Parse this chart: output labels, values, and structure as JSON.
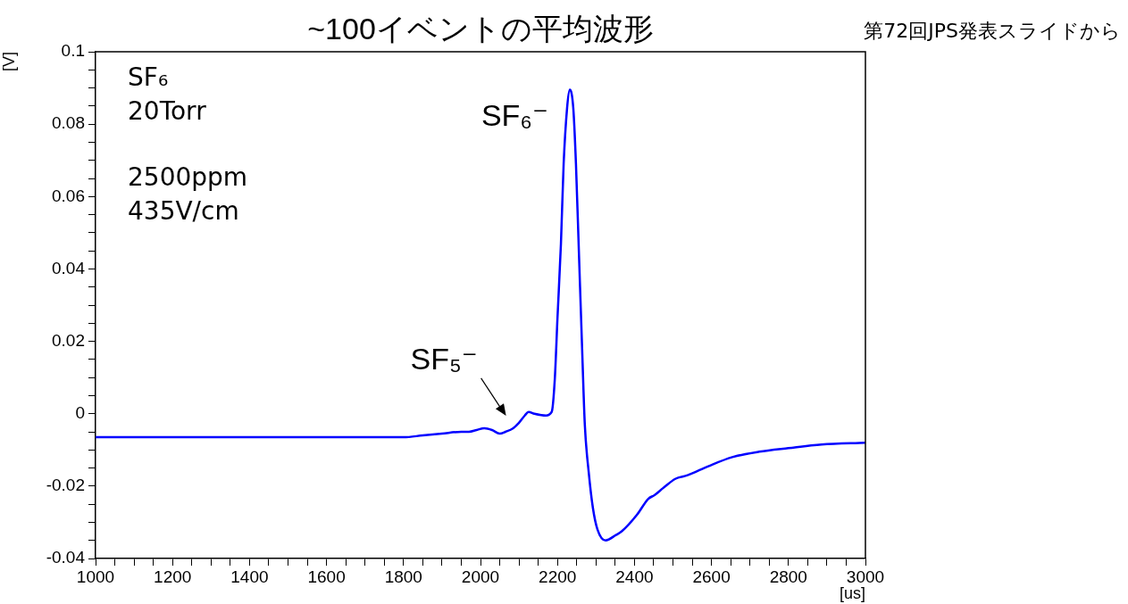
{
  "chart_data": {
    "type": "line",
    "title": "~100イベントの平均波形",
    "xlabel": "[us]",
    "ylabel": "[V]",
    "x": [
      1000,
      1200,
      1400,
      1600,
      1800,
      1850,
      1900,
      1950,
      1970,
      1990,
      2010,
      2030,
      2050,
      2065,
      2085,
      2100,
      2115,
      2125,
      2140,
      2170,
      2185,
      2193,
      2200,
      2209,
      2216,
      2225,
      2232,
      2241,
      2248,
      2256,
      2264,
      2271,
      2281,
      2292,
      2304,
      2325,
      2352,
      2367,
      2406,
      2436,
      2452,
      2475,
      2506,
      2538,
      2592,
      2654,
      2724,
      2800,
      2886,
      3000
    ],
    "series": [
      {
        "color": "#0000ff",
        "values": [
          -0.0065,
          -0.0065,
          -0.0065,
          -0.0065,
          -0.0065,
          -0.006,
          -0.0055,
          -0.005,
          -0.005,
          -0.0045,
          -0.004,
          -0.0045,
          -0.0055,
          -0.005,
          -0.004,
          -0.0025,
          -0.0005,
          0.0005,
          0,
          -0.0005,
          0.0005,
          0.0095,
          0.0265,
          0.047,
          0.069,
          0.0845,
          0.0895,
          0.0845,
          0.069,
          0.0435,
          0.018,
          -0.003,
          -0.016,
          -0.026,
          -0.032,
          -0.035,
          -0.0335,
          -0.0325,
          -0.028,
          -0.0235,
          -0.0225,
          -0.0205,
          -0.018,
          -0.017,
          -0.0145,
          -0.012,
          -0.0105,
          -0.0095,
          -0.0085,
          -0.008
        ]
      }
    ],
    "xlim": [
      1000,
      3000
    ],
    "xticks": [
      1000,
      {
        "value": 1050,
        "label": null
      },
      {
        "value": 1100,
        "label": null
      },
      {
        "value": 1150,
        "label": null
      },
      1200,
      {
        "value": 1250,
        "label": null
      },
      {
        "value": 1300,
        "label": null
      },
      {
        "value": 1350,
        "label": null
      },
      1400,
      {
        "value": 1450,
        "label": null
      },
      {
        "value": 1500,
        "label": null
      },
      {
        "value": 1550,
        "label": null
      },
      1600,
      {
        "value": 1650,
        "label": null
      },
      {
        "value": 1700,
        "label": null
      },
      {
        "value": 1750,
        "label": null
      },
      1800,
      {
        "value": 1850,
        "label": null
      },
      {
        "value": 1900,
        "label": null
      },
      {
        "value": 1950,
        "label": null
      },
      2000,
      {
        "value": 2050,
        "label": null
      },
      {
        "value": 2100,
        "label": null
      },
      {
        "value": 2150,
        "label": null
      },
      2200,
      {
        "value": 2250,
        "label": null
      },
      {
        "value": 2300,
        "label": null
      },
      {
        "value": 2350,
        "label": null
      },
      2400,
      {
        "value": 2450,
        "label": null
      },
      {
        "value": 2500,
        "label": null
      },
      {
        "value": 2550,
        "label": null
      },
      2600,
      {
        "value": 2650,
        "label": null
      },
      {
        "value": 2700,
        "label": null
      },
      {
        "value": 2750,
        "label": null
      },
      2800,
      {
        "value": 2850,
        "label": null
      },
      {
        "value": 2900,
        "label": null
      },
      {
        "value": 2950,
        "label": null
      },
      3000
    ],
    "ylim": [
      -0.04,
      0.1
    ],
    "yticks": [
      -0.04,
      {
        "value": -0.035,
        "label": null
      },
      {
        "value": -0.03,
        "label": null
      },
      {
        "value": -0.025,
        "label": null
      },
      -0.02,
      {
        "value": -0.015,
        "label": null
      },
      {
        "value": -0.01,
        "label": null
      },
      {
        "value": -0.005,
        "label": null
      },
      0,
      {
        "value": 0.005,
        "label": null
      },
      {
        "value": 0.01,
        "label": null
      },
      {
        "value": 0.015,
        "label": null
      },
      0.02,
      {
        "value": 0.025,
        "label": null
      },
      {
        "value": 0.03,
        "label": null
      },
      {
        "value": 0.035,
        "label": null
      },
      0.04,
      {
        "value": 0.045,
        "label": null
      },
      {
        "value": 0.05,
        "label": null
      },
      {
        "value": 0.055,
        "label": null
      },
      0.06,
      {
        "value": 0.065,
        "label": null
      },
      {
        "value": 0.07,
        "label": null
      },
      {
        "value": 0.075,
        "label": null
      },
      0.08,
      {
        "value": 0.085,
        "label": null
      },
      {
        "value": 0.09,
        "label": null
      },
      {
        "value": 0.095,
        "label": null
      },
      0.1
    ],
    "grid": false,
    "marker": "none",
    "line_style": "solid",
    "annotations": [
      "SF₆",
      "20Torr",
      "2500ppm",
      "435V/cm",
      {
        "text": "SF₆⁻",
        "x": 2232,
        "y": 0.0895
      },
      {
        "text": "SF₅⁻",
        "x": 2085,
        "y": -0.004
      },
      "第72回JPS発表スライドから"
    ]
  }
}
